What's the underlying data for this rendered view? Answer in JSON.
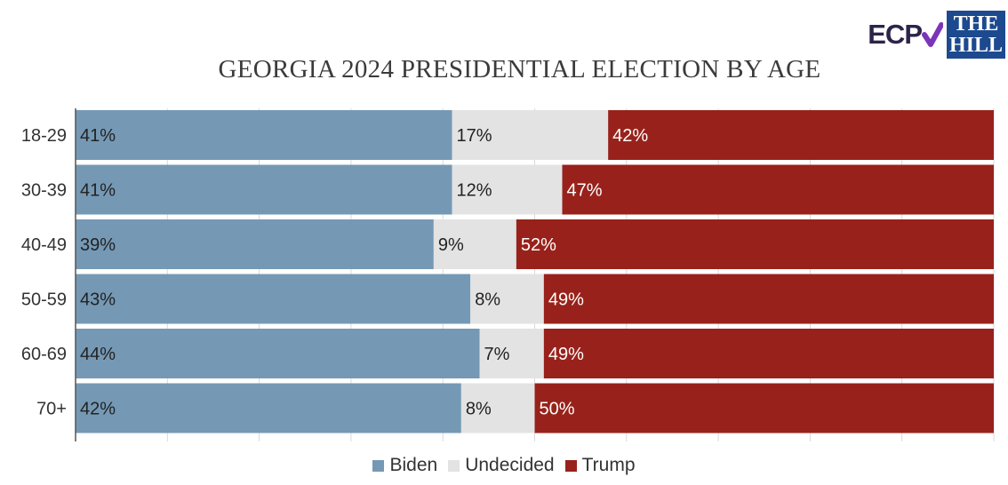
{
  "logos": {
    "ecp": "ECP",
    "hill_line1": "THE",
    "hill_line2": "HILL"
  },
  "chart_data": {
    "type": "bar",
    "orientation": "horizontal",
    "stacked": true,
    "stack_mode": "percent",
    "title": "GEORGIA 2024 PRESIDENTIAL ELECTION BY AGE",
    "categories": [
      "18-29",
      "30-39",
      "40-49",
      "50-59",
      "60-69",
      "70+"
    ],
    "series": [
      {
        "name": "Biden",
        "color": "#7599b5",
        "values": [
          41,
          41,
          39,
          43,
          44,
          42
        ]
      },
      {
        "name": "Undecided",
        "color": "#e3e3e3",
        "values": [
          17,
          12,
          9,
          8,
          7,
          8
        ]
      },
      {
        "name": "Trump",
        "color": "#98221b",
        "values": [
          42,
          47,
          52,
          49,
          49,
          50
        ]
      }
    ],
    "value_suffix": "%",
    "xlim": [
      0,
      100
    ],
    "grid": true,
    "legend_position": "bottom-center"
  }
}
